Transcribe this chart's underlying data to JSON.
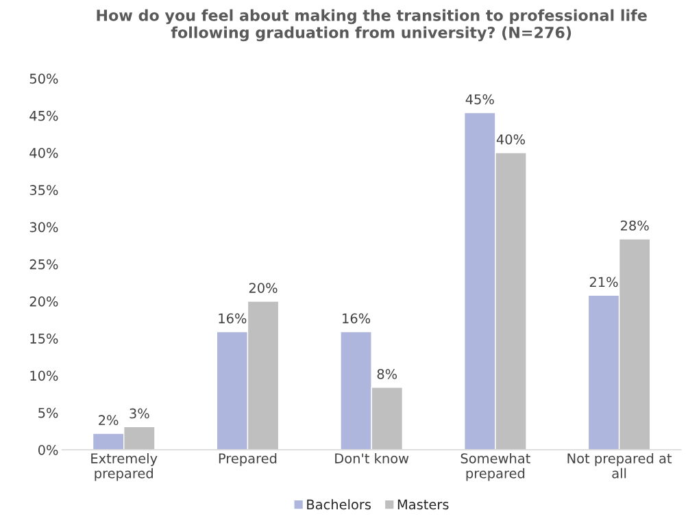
{
  "chart_data": {
    "type": "bar",
    "title": "How do you feel about making the transition to professional life following graduation from university? (N=276)",
    "categories": [
      "Extremely prepared",
      "Prepared",
      "Don't know",
      "Somewhat prepared",
      "Not prepared at all"
    ],
    "series": [
      {
        "name": "Bachelors",
        "color": "#aeb6de",
        "values": [
          2.2,
          15.9,
          15.9,
          45.4,
          20.8
        ],
        "value_labels": [
          "2%",
          "16%",
          "16%",
          "45%",
          "21%"
        ]
      },
      {
        "name": "Masters",
        "color": "#bfbfbf",
        "values": [
          3.1,
          20.0,
          8.4,
          40.0,
          28.4
        ],
        "value_labels": [
          "3%",
          "20%",
          "8%",
          "40%",
          "28%"
        ]
      }
    ],
    "ylim": [
      0,
      50
    ],
    "yticks": [
      {
        "value": 0,
        "label": "0%"
      },
      {
        "value": 5,
        "label": "5%"
      },
      {
        "value": 10,
        "label": "10%"
      },
      {
        "value": 15,
        "label": "15%"
      },
      {
        "value": 20,
        "label": "20%"
      },
      {
        "value": 25,
        "label": "25%"
      },
      {
        "value": 30,
        "label": "30%"
      },
      {
        "value": 35,
        "label": "35%"
      },
      {
        "value": 40,
        "label": "40%"
      },
      {
        "value": 45,
        "label": "45%"
      },
      {
        "value": 50,
        "label": "50%"
      }
    ],
    "grid": false,
    "legend": "bottom"
  }
}
